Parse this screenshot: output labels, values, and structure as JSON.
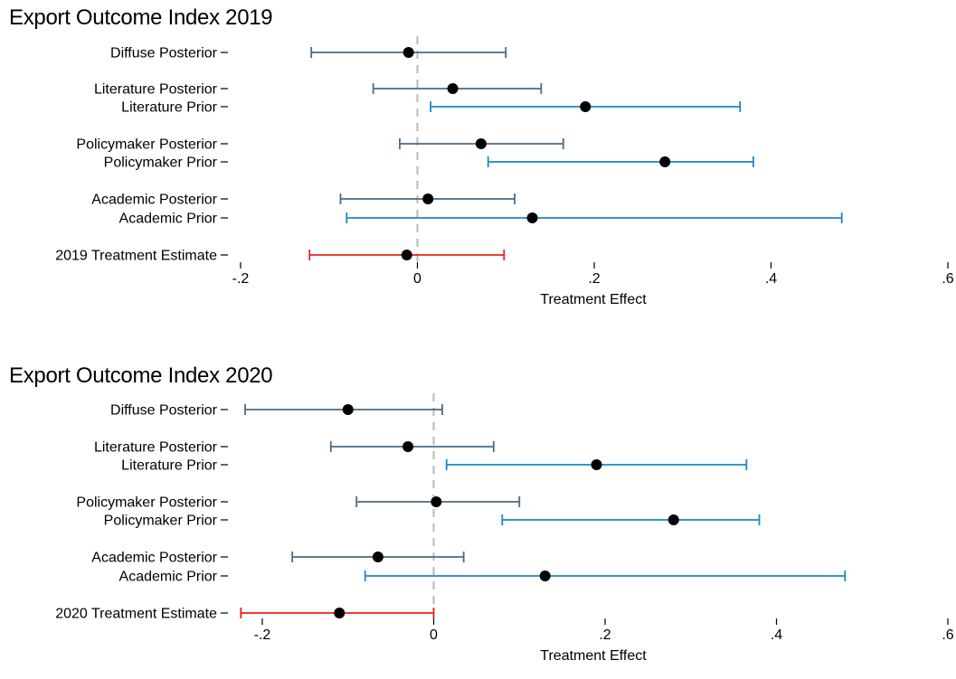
{
  "colors": {
    "posterior": "#4a6a86",
    "prior": "#1a8ac0",
    "estimate": "#e8231e",
    "point": "#000000",
    "zero_line": "#b8b8b8"
  },
  "chart_data": [
    {
      "type": "scatter",
      "title": "Export Outcome Index 2019",
      "xlabel": "Treatment Effect",
      "xlim": [
        -0.2,
        0.6
      ],
      "xticks": [
        -0.2,
        0,
        0.2,
        0.4,
        0.6
      ],
      "xtick_labels": [
        "-.2",
        "0",
        ".2",
        ".4",
        ".6"
      ],
      "reference_line": 0,
      "grid": false,
      "rows": [
        {
          "label": "Diffuse Posterior",
          "estimate": -0.01,
          "ci_low": -0.12,
          "ci_high": 0.1,
          "group": "posterior"
        },
        {
          "label": "Literature Posterior",
          "estimate": 0.04,
          "ci_low": -0.05,
          "ci_high": 0.14,
          "group": "posterior"
        },
        {
          "label": "Literature Prior",
          "estimate": 0.19,
          "ci_low": 0.015,
          "ci_high": 0.365,
          "group": "prior"
        },
        {
          "label": "Policymaker Posterior",
          "estimate": 0.072,
          "ci_low": -0.02,
          "ci_high": 0.165,
          "group": "posterior"
        },
        {
          "label": "Policymaker Prior",
          "estimate": 0.28,
          "ci_low": 0.08,
          "ci_high": 0.38,
          "group": "prior"
        },
        {
          "label": "Academic Posterior",
          "estimate": 0.012,
          "ci_low": -0.087,
          "ci_high": 0.11,
          "group": "posterior"
        },
        {
          "label": "Academic Prior",
          "estimate": 0.13,
          "ci_low": -0.08,
          "ci_high": 0.48,
          "group": "prior"
        },
        {
          "label": "2019 Treatment Estimate",
          "estimate": -0.012,
          "ci_low": -0.122,
          "ci_high": 0.098,
          "group": "estimate"
        }
      ]
    },
    {
      "type": "scatter",
      "title": "Export Outcome Index 2020",
      "xlabel": "Treatment Effect",
      "xlim": [
        -0.2,
        0.6
      ],
      "xticks": [
        -0.2,
        0,
        0.2,
        0.4,
        0.6
      ],
      "xtick_labels": [
        "-.2",
        "0",
        ".2",
        ".4",
        ".6"
      ],
      "reference_line": 0,
      "grid": false,
      "rows": [
        {
          "label": "Diffuse Posterior",
          "estimate": -0.1,
          "ci_low": -0.22,
          "ci_high": 0.01,
          "group": "posterior"
        },
        {
          "label": "Literature Posterior",
          "estimate": -0.03,
          "ci_low": -0.12,
          "ci_high": 0.07,
          "group": "posterior"
        },
        {
          "label": "Literature Prior",
          "estimate": 0.19,
          "ci_low": 0.015,
          "ci_high": 0.365,
          "group": "prior"
        },
        {
          "label": "Policymaker Posterior",
          "estimate": 0.003,
          "ci_low": -0.09,
          "ci_high": 0.1,
          "group": "posterior"
        },
        {
          "label": "Policymaker Prior",
          "estimate": 0.28,
          "ci_low": 0.08,
          "ci_high": 0.38,
          "group": "prior"
        },
        {
          "label": "Academic Posterior",
          "estimate": -0.065,
          "ci_low": -0.165,
          "ci_high": 0.035,
          "group": "posterior"
        },
        {
          "label": "Academic Prior",
          "estimate": 0.13,
          "ci_low": -0.08,
          "ci_high": 0.48,
          "group": "prior"
        },
        {
          "label": "2020 Treatment Estimate",
          "estimate": -0.11,
          "ci_low": -0.225,
          "ci_high": 0.0,
          "group": "estimate"
        }
      ]
    }
  ]
}
